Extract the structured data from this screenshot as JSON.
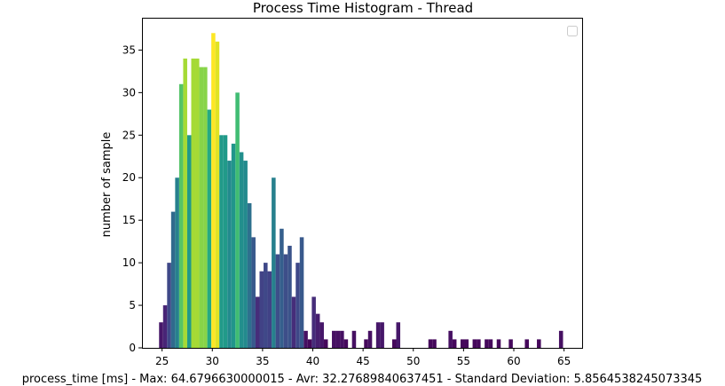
{
  "chart_data": {
    "type": "bar",
    "title": "Process Time Histogram - Thread",
    "xlabel": "process_time [ms] - Max: 64.6796630000015 - Avr: 32.27689840637451 - Standard Deviation: 5.8564538245073345",
    "ylabel": "number of sample",
    "xlim": [
      23.0,
      66.8
    ],
    "ylim": [
      0,
      38.8
    ],
    "xticks": [
      25,
      30,
      35,
      40,
      45,
      50,
      55,
      60,
      65
    ],
    "yticks": [
      0,
      5,
      10,
      15,
      20,
      25,
      30,
      35
    ],
    "grid": false,
    "legend": "top-right, empty",
    "colormap": "viridis (color by bar height)",
    "bin_width": 0.4,
    "bins": [
      {
        "x": 24.9,
        "y": 3
      },
      {
        "x": 25.3,
        "y": 5
      },
      {
        "x": 25.7,
        "y": 10
      },
      {
        "x": 26.1,
        "y": 16
      },
      {
        "x": 26.5,
        "y": 20
      },
      {
        "x": 26.9,
        "y": 31
      },
      {
        "x": 27.3,
        "y": 34
      },
      {
        "x": 27.7,
        "y": 25
      },
      {
        "x": 28.1,
        "y": 34
      },
      {
        "x": 28.5,
        "y": 34
      },
      {
        "x": 28.9,
        "y": 33
      },
      {
        "x": 29.3,
        "y": 33
      },
      {
        "x": 29.7,
        "y": 28
      },
      {
        "x": 30.1,
        "y": 37
      },
      {
        "x": 30.5,
        "y": 36
      },
      {
        "x": 30.9,
        "y": 25
      },
      {
        "x": 31.3,
        "y": 25
      },
      {
        "x": 31.7,
        "y": 22
      },
      {
        "x": 32.1,
        "y": 24
      },
      {
        "x": 32.5,
        "y": 30
      },
      {
        "x": 32.9,
        "y": 23
      },
      {
        "x": 33.3,
        "y": 22
      },
      {
        "x": 33.7,
        "y": 17
      },
      {
        "x": 34.1,
        "y": 13
      },
      {
        "x": 34.5,
        "y": 6
      },
      {
        "x": 34.9,
        "y": 9
      },
      {
        "x": 35.3,
        "y": 10
      },
      {
        "x": 35.7,
        "y": 9
      },
      {
        "x": 36.1,
        "y": 20
      },
      {
        "x": 36.5,
        "y": 11
      },
      {
        "x": 36.9,
        "y": 14
      },
      {
        "x": 37.3,
        "y": 11
      },
      {
        "x": 37.7,
        "y": 12
      },
      {
        "x": 38.1,
        "y": 6
      },
      {
        "x": 38.5,
        "y": 10
      },
      {
        "x": 38.9,
        "y": 13
      },
      {
        "x": 39.3,
        "y": 2
      },
      {
        "x": 39.7,
        "y": 1
      },
      {
        "x": 40.1,
        "y": 6
      },
      {
        "x": 40.5,
        "y": 4
      },
      {
        "x": 40.9,
        "y": 3
      },
      {
        "x": 41.3,
        "y": 1
      },
      {
        "x": 42.1,
        "y": 2
      },
      {
        "x": 42.5,
        "y": 2
      },
      {
        "x": 42.9,
        "y": 2
      },
      {
        "x": 43.3,
        "y": 1
      },
      {
        "x": 44.1,
        "y": 2
      },
      {
        "x": 45.3,
        "y": 1
      },
      {
        "x": 45.7,
        "y": 2
      },
      {
        "x": 46.5,
        "y": 3
      },
      {
        "x": 46.9,
        "y": 3
      },
      {
        "x": 48.1,
        "y": 1
      },
      {
        "x": 48.5,
        "y": 3
      },
      {
        "x": 51.7,
        "y": 1
      },
      {
        "x": 52.1,
        "y": 1
      },
      {
        "x": 53.7,
        "y": 2
      },
      {
        "x": 54.1,
        "y": 1
      },
      {
        "x": 54.9,
        "y": 1
      },
      {
        "x": 55.3,
        "y": 1
      },
      {
        "x": 56.1,
        "y": 1
      },
      {
        "x": 56.5,
        "y": 1
      },
      {
        "x": 57.3,
        "y": 1
      },
      {
        "x": 57.7,
        "y": 1
      },
      {
        "x": 58.5,
        "y": 1
      },
      {
        "x": 59.7,
        "y": 1
      },
      {
        "x": 61.3,
        "y": 1
      },
      {
        "x": 62.5,
        "y": 1
      },
      {
        "x": 64.7,
        "y": 2
      }
    ]
  }
}
